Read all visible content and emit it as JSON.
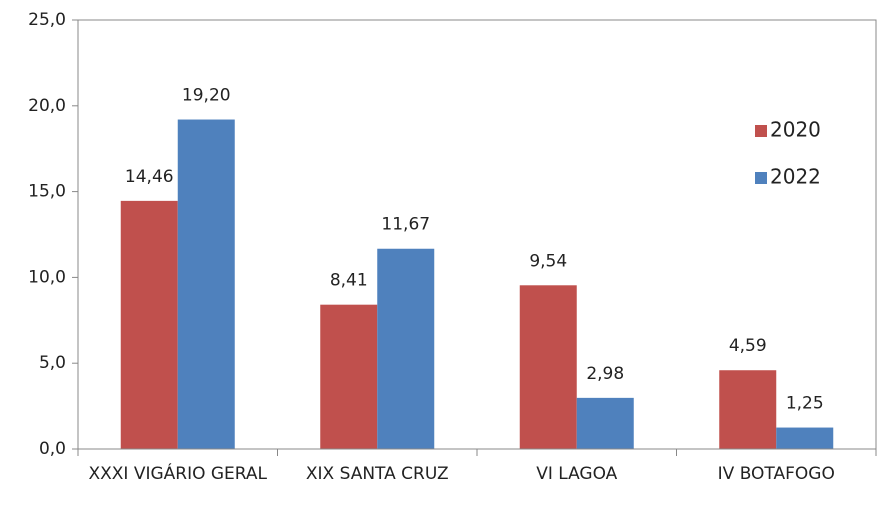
{
  "chart_data": {
    "type": "bar",
    "categories": [
      "XXXI VIGÁRIO GERAL",
      "XIX SANTA CRUZ",
      "VI LAGOA",
      "IV BOTAFOGO"
    ],
    "series": [
      {
        "name": "2020",
        "color": "#c0504d",
        "values": [
          14.46,
          8.41,
          9.54,
          4.59
        ],
        "value_labels": [
          "14,46",
          "8,41",
          "9,54",
          "4,59"
        ]
      },
      {
        "name": "2022",
        "color": "#4f81bd",
        "values": [
          19.2,
          11.67,
          2.98,
          1.25
        ],
        "value_labels": [
          "19,20",
          "11,67",
          "2,98",
          "1,25"
        ]
      }
    ],
    "ylim": [
      0,
      25
    ],
    "yticks": [
      {
        "value": 0,
        "label": "0,0"
      },
      {
        "value": 5,
        "label": "5,0"
      },
      {
        "value": 10,
        "label": "10,0"
      },
      {
        "value": 15,
        "label": "15,0"
      },
      {
        "value": 20,
        "label": "20,0"
      },
      {
        "value": 25,
        "label": "25,0"
      }
    ],
    "legend": "right"
  }
}
